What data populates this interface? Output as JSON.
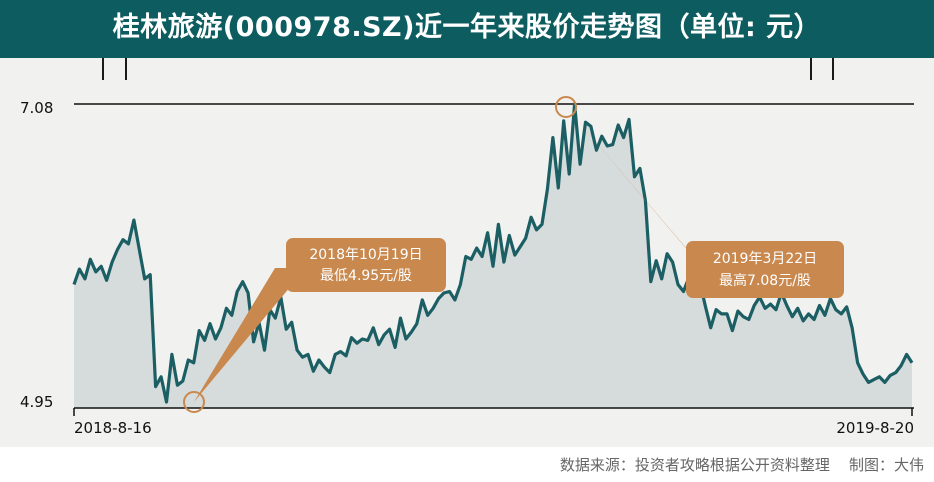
{
  "title": "桂林旅游(000978.SZ)近一年来股价走势图（单位: 元）",
  "footer": "数据来源：投资者攻略根据公开资料整理    制图：大伟",
  "colors": {
    "banner": "#0d5c60",
    "line": "#1b5e63",
    "area": "#d6dcdc",
    "callout": "#c8884e",
    "panel": "#f1f1ef"
  },
  "chart_data": {
    "type": "area",
    "title": "桂林旅游(000978.SZ)近一年来股价走势图（单位: 元）",
    "xlabel": "",
    "ylabel": "",
    "x_ticks": [
      "2018-8-16",
      "2019-8-20"
    ],
    "y_ticks": [
      "4.95",
      "7.08"
    ],
    "ylim": [
      4.95,
      7.08
    ],
    "grid": false,
    "series": [
      {
        "values": [
          5.79,
          5.9,
          5.83,
          5.97,
          5.88,
          5.92,
          5.82,
          5.95,
          6.04,
          6.11,
          6.08,
          6.25,
          6.04,
          5.83,
          5.86,
          5.06,
          5.13,
          4.95,
          5.29,
          5.07,
          5.1,
          5.25,
          5.23,
          5.46,
          5.39,
          5.51,
          5.4,
          5.48,
          5.62,
          5.57,
          5.74,
          5.81,
          5.73,
          5.38,
          5.52,
          5.32,
          5.61,
          5.55,
          5.7,
          5.47,
          5.52,
          5.32,
          5.27,
          5.29,
          5.17,
          5.25,
          5.2,
          5.16,
          5.29,
          5.31,
          5.28,
          5.41,
          5.37,
          5.4,
          5.39,
          5.48,
          5.36,
          5.43,
          5.47,
          5.34,
          5.55,
          5.4,
          5.45,
          5.51,
          5.68,
          5.57,
          5.62,
          5.69,
          5.73,
          5.74,
          5.68,
          5.79,
          5.99,
          5.97,
          6.05,
          5.99,
          6.16,
          5.92,
          6.22,
          5.95,
          6.14,
          6.0,
          6.06,
          6.12,
          6.27,
          6.18,
          6.22,
          6.47,
          6.84,
          6.48,
          6.96,
          6.58,
          7.08,
          6.65,
          6.95,
          6.92,
          6.75,
          6.85,
          6.78,
          6.79,
          6.93,
          6.84,
          6.97,
          6.56,
          6.62,
          6.39,
          5.81,
          5.96,
          5.83,
          6.01,
          5.95,
          5.79,
          5.74,
          5.84,
          5.77,
          5.81,
          5.64,
          5.48,
          5.61,
          5.58,
          5.58,
          5.46,
          5.6,
          5.56,
          5.54,
          5.64,
          5.7,
          5.62,
          5.65,
          5.61,
          5.73,
          5.64,
          5.56,
          5.62,
          5.53,
          5.58,
          5.54,
          5.64,
          5.57,
          5.69,
          5.61,
          5.58,
          5.63,
          5.48,
          5.23,
          5.15,
          5.09,
          5.11,
          5.13,
          5.09,
          5.14,
          5.16,
          5.21,
          5.29,
          5.23
        ]
      }
    ],
    "annotations": [
      {
        "title": "2018年10月19日",
        "text": "最低4.95元/股"
      },
      {
        "title": "2019年3月22日",
        "text": "最高7.08元/股"
      }
    ]
  }
}
